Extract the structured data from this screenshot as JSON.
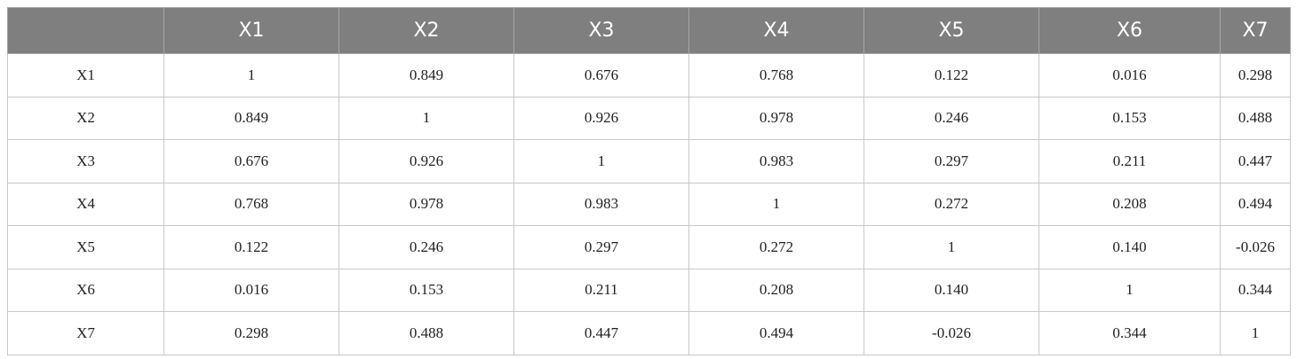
{
  "table": {
    "columns": [
      "X1",
      "X2",
      "X3",
      "X4",
      "X5",
      "X6",
      "X7"
    ],
    "rows": [
      {
        "label": "X1",
        "cells": [
          "1",
          "0.849",
          "0.676",
          "0.768",
          "0.122",
          "0.016",
          "0.298"
        ]
      },
      {
        "label": "X2",
        "cells": [
          "0.849",
          "1",
          "0.926",
          "0.978",
          "0.246",
          "0.153",
          "0.488"
        ]
      },
      {
        "label": "X3",
        "cells": [
          "0.676",
          "0.926",
          "1",
          "0.983",
          "0.297",
          "0.211",
          "0.447"
        ]
      },
      {
        "label": "X4",
        "cells": [
          "0.768",
          "0.978",
          "0.983",
          "1",
          "0.272",
          "0.208",
          "0.494"
        ]
      },
      {
        "label": "X5",
        "cells": [
          "0.122",
          "0.246",
          "0.297",
          "0.272",
          "1",
          "0.140",
          "-0.026"
        ]
      },
      {
        "label": "X6",
        "cells": [
          "0.016",
          "0.153",
          "0.211",
          "0.208",
          "0.140",
          "1",
          "0.344"
        ]
      },
      {
        "label": "X7",
        "cells": [
          "0.298",
          "0.488",
          "0.447",
          "0.494",
          "-0.026",
          "0.344",
          "1"
        ]
      }
    ]
  }
}
